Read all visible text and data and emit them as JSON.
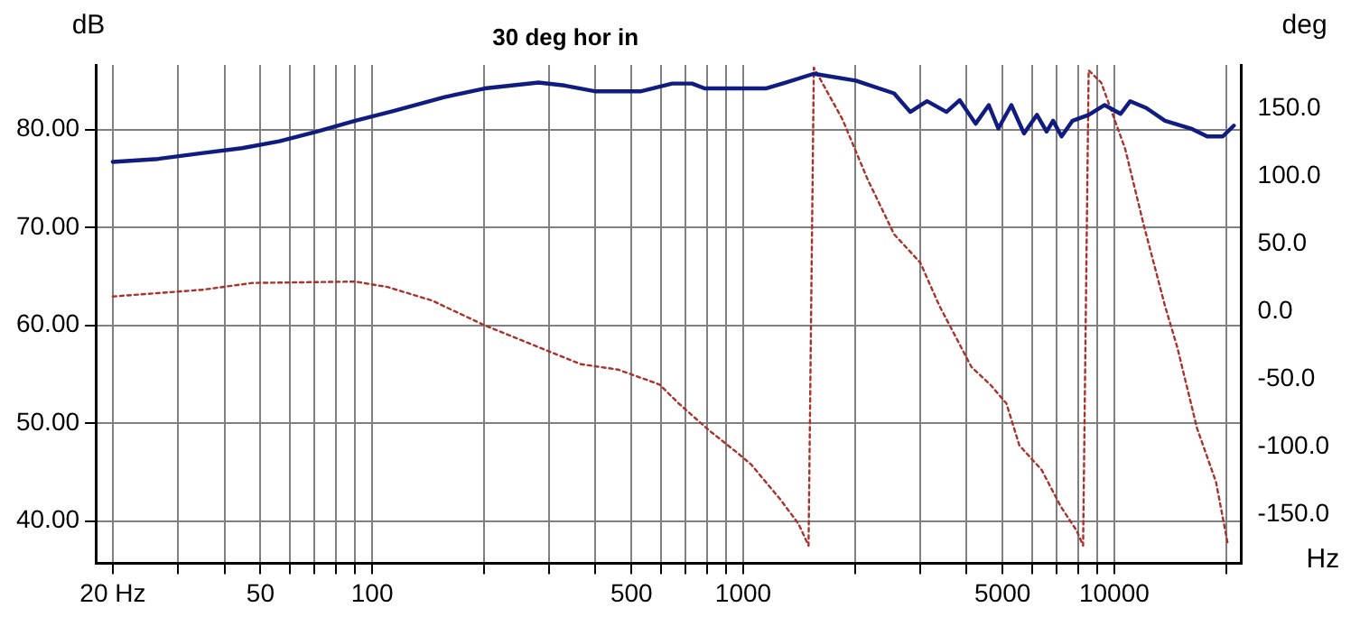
{
  "chart_data": {
    "type": "line",
    "title": "30 deg hor in",
    "xlabel": "Hz",
    "ylabel": "dB",
    "y2label": "deg",
    "log": "x",
    "grid": true,
    "legend": false,
    "marker": "none",
    "xlim": [
      18,
      22000
    ],
    "xticks": [
      {
        "value": 20,
        "label": "20 Hz"
      },
      {
        "value": 30,
        "label": null
      },
      {
        "value": 40,
        "label": null
      },
      50,
      {
        "value": 60,
        "label": null
      },
      {
        "value": 70,
        "label": null
      },
      {
        "value": 80,
        "label": null
      },
      {
        "value": 90,
        "label": null
      },
      100,
      {
        "value": 200,
        "label": null
      },
      {
        "value": 300,
        "label": null
      },
      {
        "value": 400,
        "label": null
      },
      500,
      {
        "value": 600,
        "label": null
      },
      {
        "value": 700,
        "label": null
      },
      {
        "value": 800,
        "label": null
      },
      {
        "value": 900,
        "label": null
      },
      1000,
      {
        "value": 2000,
        "label": null
      },
      {
        "value": 3000,
        "label": null
      },
      {
        "value": 4000,
        "label": null
      },
      5000,
      {
        "value": 6000,
        "label": null
      },
      {
        "value": 7000,
        "label": null
      },
      {
        "value": 8000,
        "label": null
      },
      {
        "value": 9000,
        "label": null
      },
      10000,
      {
        "value": 20000,
        "label": null
      }
    ],
    "ylim": [
      35.7,
      86.6
    ],
    "yticks": [
      {
        "value": 40,
        "label": "40.00"
      },
      {
        "value": 50,
        "label": "50.00"
      },
      {
        "value": 60,
        "label": "60.00"
      },
      {
        "value": 70,
        "label": "70.00"
      },
      {
        "value": 80,
        "label": "80.00"
      }
    ],
    "y2lim": [
      -186,
      182
    ],
    "y2ticks": [
      {
        "value": -150,
        "label": "-150.0"
      },
      {
        "value": -100,
        "label": "-100.0"
      },
      {
        "value": -50,
        "label": "-50.0"
      },
      {
        "value": 0,
        "label": "0.0"
      },
      {
        "value": 50,
        "label": "50.0"
      },
      {
        "value": 100,
        "label": "100.0"
      },
      {
        "value": 150,
        "label": "150.0"
      }
    ],
    "series": [
      {
        "color": "#101c80",
        "line_style": "solid",
        "x": [
          20,
          26.5,
          35,
          44.6,
          56.2,
          71,
          90,
          114,
          156,
          201,
          281,
          330,
          401,
          528,
          644,
          728,
          787,
          1150,
          1300,
          1550,
          2010,
          2550,
          2820,
          3130,
          3530,
          3830,
          4230,
          4590,
          4870,
          5280,
          5710,
          6190,
          6570,
          6840,
          7210,
          7720,
          8530,
          9420,
          10400,
          11040,
          12200,
          13700,
          16100,
          17800,
          19600,
          21000
        ],
        "values": [
          76.7,
          77.0,
          77.6,
          78.1,
          78.8,
          79.8,
          80.9,
          81.9,
          83.3,
          84.2,
          84.8,
          84.5,
          83.9,
          83.9,
          84.7,
          84.7,
          84.2,
          84.2,
          84.8,
          85.7,
          85.0,
          83.7,
          81.8,
          82.9,
          81.8,
          83.0,
          80.6,
          82.5,
          80.1,
          82.5,
          79.6,
          81.5,
          79.8,
          80.9,
          79.3,
          80.9,
          81.5,
          82.5,
          81.6,
          82.9,
          82.2,
          80.9,
          80.1,
          79.3,
          79.3,
          80.4
        ]
      },
      {
        "color": "#a8322c",
        "line_style": "dotted",
        "axis": "y2",
        "x": [
          20,
          35,
          47.6,
          90,
          110,
          145,
          200,
          290,
          365,
          460,
          595,
          670,
          810,
          960,
          1050,
          1260,
          1410,
          1500,
          1550,
          1850,
          2160,
          2550,
          3000,
          3380,
          3660,
          4120,
          4630,
          5120,
          5550,
          6370,
          7170,
          7920,
          8240,
          8530,
          9220,
          10700,
          12000,
          13700,
          14800,
          16700,
          18800,
          20200
        ],
        "values": [
          11,
          16,
          21,
          22,
          18,
          8,
          -10,
          -28,
          -39,
          -43,
          -54,
          -68,
          -88,
          -104,
          -113,
          -139,
          -157,
          -173,
          180,
          142,
          98,
          57,
          36,
          4,
          -14,
          -41,
          -54,
          -68,
          -99,
          -117,
          -144,
          -162,
          -173,
          178,
          169,
          120,
          64,
          4,
          -27,
          -86,
          -126,
          -171
        ]
      }
    ]
  }
}
